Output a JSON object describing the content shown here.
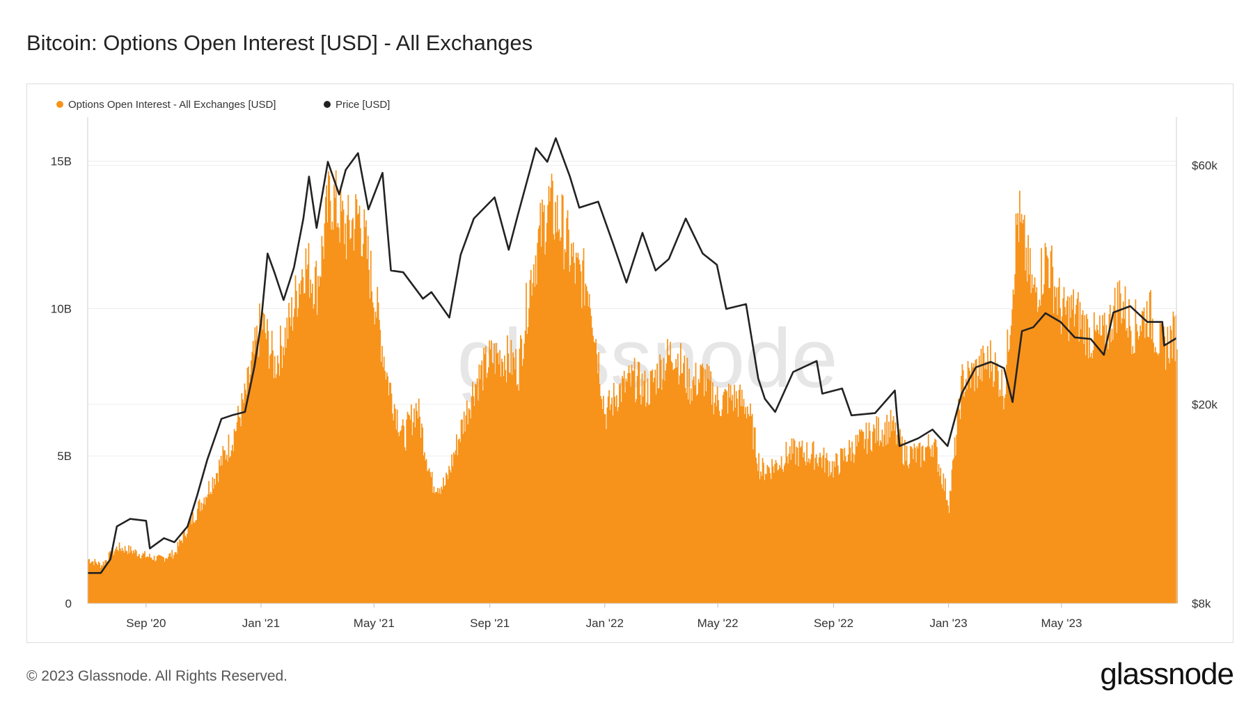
{
  "title": "Bitcoin: Options Open Interest [USD] - All Exchanges",
  "footer": {
    "copyright": "© 2023 Glassnode. All Rights Reserved.",
    "brand": "glassnode"
  },
  "watermark": "glassnode",
  "colors": {
    "oi": "#F7931A",
    "price": "#222222",
    "grid": "#ececec"
  },
  "chart_data": {
    "type": "bar",
    "title": "Bitcoin: Options Open Interest [USD] - All Exchanges",
    "legend": [
      "Options Open Interest - All Exchanges [USD]",
      "Price [USD]"
    ],
    "legend_position": "top-left",
    "grid": true,
    "x_range": [
      "2020-07-01",
      "2023-08-31"
    ],
    "x_ticks": [
      "Sep '20",
      "Jan '21",
      "May '21",
      "Sep '21",
      "Jan '22",
      "May '22",
      "Sep '22",
      "Jan '23",
      "May '23"
    ],
    "x_tick_dates": [
      "2020-09-01",
      "2021-01-01",
      "2021-05-01",
      "2021-09-01",
      "2022-01-01",
      "2022-05-01",
      "2022-09-01",
      "2023-01-01",
      "2023-05-01"
    ],
    "y_left": {
      "ticks": [
        "0",
        "5B",
        "10B",
        "15B"
      ],
      "values": [
        0,
        5,
        10,
        15
      ],
      "unit": "B",
      "range": [
        0,
        16.5
      ]
    },
    "y_right": {
      "ticks": [
        "$8k",
        "$20k",
        "$60k"
      ],
      "values": [
        8000,
        20000,
        60000
      ],
      "scale": "log",
      "range": [
        8000,
        75000
      ]
    },
    "series": [
      {
        "name": "Options Open Interest - All Exchanges [USD]",
        "kind": "bar",
        "axis": "left",
        "points": [
          [
            "2020-07-01",
            1.5
          ],
          [
            "2020-07-15",
            1.3
          ],
          [
            "2020-08-01",
            1.9
          ],
          [
            "2020-08-15",
            1.8
          ],
          [
            "2020-09-01",
            1.6
          ],
          [
            "2020-09-15",
            1.5
          ],
          [
            "2020-10-01",
            1.7
          ],
          [
            "2020-10-15",
            2.6
          ],
          [
            "2020-11-01",
            3.6
          ],
          [
            "2020-11-15",
            4.5
          ],
          [
            "2020-12-01",
            5.6
          ],
          [
            "2020-12-15",
            7.0
          ],
          [
            "2021-01-01",
            9.6
          ],
          [
            "2021-01-15",
            8.1
          ],
          [
            "2021-02-01",
            9.6
          ],
          [
            "2021-02-15",
            11.6
          ],
          [
            "2021-03-01",
            10.8
          ],
          [
            "2021-03-15",
            13.9
          ],
          [
            "2021-04-01",
            12.6
          ],
          [
            "2021-04-15",
            13.2
          ],
          [
            "2021-05-01",
            10.4
          ],
          [
            "2021-05-15",
            7.6
          ],
          [
            "2021-06-01",
            5.6
          ],
          [
            "2021-06-15",
            6.7
          ],
          [
            "2021-07-01",
            4.1
          ],
          [
            "2021-07-15",
            4.0
          ],
          [
            "2021-08-01",
            5.9
          ],
          [
            "2021-08-15",
            7.4
          ],
          [
            "2021-09-01",
            8.3
          ],
          [
            "2021-09-15",
            8.4
          ],
          [
            "2021-10-01",
            8.0
          ],
          [
            "2021-10-15",
            11.3
          ],
          [
            "2021-11-01",
            13.5
          ],
          [
            "2021-11-15",
            12.9
          ],
          [
            "2021-12-01",
            11.2
          ],
          [
            "2021-12-15",
            10.8
          ],
          [
            "2022-01-01",
            6.4
          ],
          [
            "2022-01-15",
            7.2
          ],
          [
            "2022-02-01",
            7.6
          ],
          [
            "2022-02-15",
            7.2
          ],
          [
            "2022-03-01",
            8.0
          ],
          [
            "2022-03-15",
            8.6
          ],
          [
            "2022-04-01",
            7.4
          ],
          [
            "2022-04-15",
            7.7
          ],
          [
            "2022-05-01",
            6.8
          ],
          [
            "2022-05-15",
            7.0
          ],
          [
            "2022-06-01",
            6.7
          ],
          [
            "2022-06-15",
            4.5
          ],
          [
            "2022-07-01",
            4.7
          ],
          [
            "2022-07-15",
            5.1
          ],
          [
            "2022-08-01",
            5.1
          ],
          [
            "2022-08-15",
            5.0
          ],
          [
            "2022-09-01",
            4.6
          ],
          [
            "2022-09-15",
            5.1
          ],
          [
            "2022-10-01",
            5.5
          ],
          [
            "2022-10-15",
            5.8
          ],
          [
            "2022-11-01",
            6.0
          ],
          [
            "2022-11-15",
            5.1
          ],
          [
            "2022-12-01",
            5.0
          ],
          [
            "2022-12-15",
            5.5
          ],
          [
            "2023-01-01",
            3.4
          ],
          [
            "2023-01-15",
            7.5
          ],
          [
            "2023-02-01",
            7.9
          ],
          [
            "2023-02-15",
            8.3
          ],
          [
            "2023-03-01",
            7.2
          ],
          [
            "2023-03-15",
            13.2
          ],
          [
            "2023-04-01",
            10.4
          ],
          [
            "2023-04-15",
            11.8
          ],
          [
            "2023-05-01",
            9.8
          ],
          [
            "2023-05-15",
            9.9
          ],
          [
            "2023-06-01",
            9.0
          ],
          [
            "2023-06-15",
            9.0
          ],
          [
            "2023-07-01",
            10.4
          ],
          [
            "2023-07-15",
            9.3
          ],
          [
            "2023-08-01",
            9.9
          ],
          [
            "2023-08-15",
            8.6
          ],
          [
            "2023-08-31",
            9.2
          ]
        ]
      },
      {
        "name": "Price [USD]",
        "kind": "line",
        "axis": "right",
        "points": [
          [
            "2020-07-01",
            9200
          ],
          [
            "2020-07-15",
            9200
          ],
          [
            "2020-07-25",
            9800
          ],
          [
            "2020-08-01",
            11400
          ],
          [
            "2020-08-15",
            11800
          ],
          [
            "2020-09-01",
            11700
          ],
          [
            "2020-09-05",
            10300
          ],
          [
            "2020-09-20",
            10800
          ],
          [
            "2020-10-01",
            10600
          ],
          [
            "2020-10-15",
            11400
          ],
          [
            "2020-10-25",
            13100
          ],
          [
            "2020-11-05",
            15500
          ],
          [
            "2020-11-20",
            18700
          ],
          [
            "2020-12-01",
            19000
          ],
          [
            "2020-12-15",
            19300
          ],
          [
            "2020-12-25",
            23800
          ],
          [
            "2021-01-01",
            29000
          ],
          [
            "2021-01-08",
            40000
          ],
          [
            "2021-01-15",
            36800
          ],
          [
            "2021-01-25",
            32300
          ],
          [
            "2021-02-05",
            37500
          ],
          [
            "2021-02-15",
            47000
          ],
          [
            "2021-02-21",
            57000
          ],
          [
            "2021-03-01",
            45000
          ],
          [
            "2021-03-13",
            61000
          ],
          [
            "2021-03-25",
            52500
          ],
          [
            "2021-04-01",
            58800
          ],
          [
            "2021-04-14",
            63500
          ],
          [
            "2021-04-25",
            49000
          ],
          [
            "2021-05-10",
            58000
          ],
          [
            "2021-05-19",
            37000
          ],
          [
            "2021-06-01",
            36700
          ],
          [
            "2021-06-22",
            32500
          ],
          [
            "2021-07-01",
            33500
          ],
          [
            "2021-07-20",
            29800
          ],
          [
            "2021-08-01",
            39800
          ],
          [
            "2021-08-15",
            47000
          ],
          [
            "2021-09-06",
            51800
          ],
          [
            "2021-09-21",
            40700
          ],
          [
            "2021-10-01",
            48000
          ],
          [
            "2021-10-20",
            65000
          ],
          [
            "2021-11-01",
            61000
          ],
          [
            "2021-11-10",
            68000
          ],
          [
            "2021-11-25",
            57000
          ],
          [
            "2021-12-05",
            49400
          ],
          [
            "2021-12-25",
            50800
          ],
          [
            "2022-01-10",
            41800
          ],
          [
            "2022-01-24",
            35000
          ],
          [
            "2022-02-10",
            44000
          ],
          [
            "2022-02-24",
            37000
          ],
          [
            "2022-03-10",
            39000
          ],
          [
            "2022-03-28",
            47000
          ],
          [
            "2022-04-15",
            40000
          ],
          [
            "2022-04-30",
            38000
          ],
          [
            "2022-05-10",
            31000
          ],
          [
            "2022-05-31",
            31700
          ],
          [
            "2022-06-13",
            22500
          ],
          [
            "2022-06-20",
            20500
          ],
          [
            "2022-07-01",
            19300
          ],
          [
            "2022-07-20",
            23200
          ],
          [
            "2022-08-14",
            24400
          ],
          [
            "2022-08-20",
            21000
          ],
          [
            "2022-09-10",
            21500
          ],
          [
            "2022-09-20",
            19000
          ],
          [
            "2022-10-15",
            19200
          ],
          [
            "2022-11-05",
            21300
          ],
          [
            "2022-11-10",
            16500
          ],
          [
            "2022-11-30",
            17100
          ],
          [
            "2022-12-15",
            17800
          ],
          [
            "2022-12-31",
            16500
          ],
          [
            "2023-01-15",
            21000
          ],
          [
            "2023-01-30",
            23700
          ],
          [
            "2023-02-15",
            24300
          ],
          [
            "2023-03-01",
            23600
          ],
          [
            "2023-03-10",
            20200
          ],
          [
            "2023-03-20",
            28000
          ],
          [
            "2023-04-01",
            28500
          ],
          [
            "2023-04-14",
            30400
          ],
          [
            "2023-04-30",
            29200
          ],
          [
            "2023-05-15",
            27200
          ],
          [
            "2023-06-01",
            27000
          ],
          [
            "2023-06-15",
            25100
          ],
          [
            "2023-06-25",
            30500
          ],
          [
            "2023-07-13",
            31400
          ],
          [
            "2023-07-31",
            29200
          ],
          [
            "2023-08-16",
            29200
          ],
          [
            "2023-08-18",
            26200
          ],
          [
            "2023-08-31",
            27100
          ]
        ]
      }
    ]
  }
}
